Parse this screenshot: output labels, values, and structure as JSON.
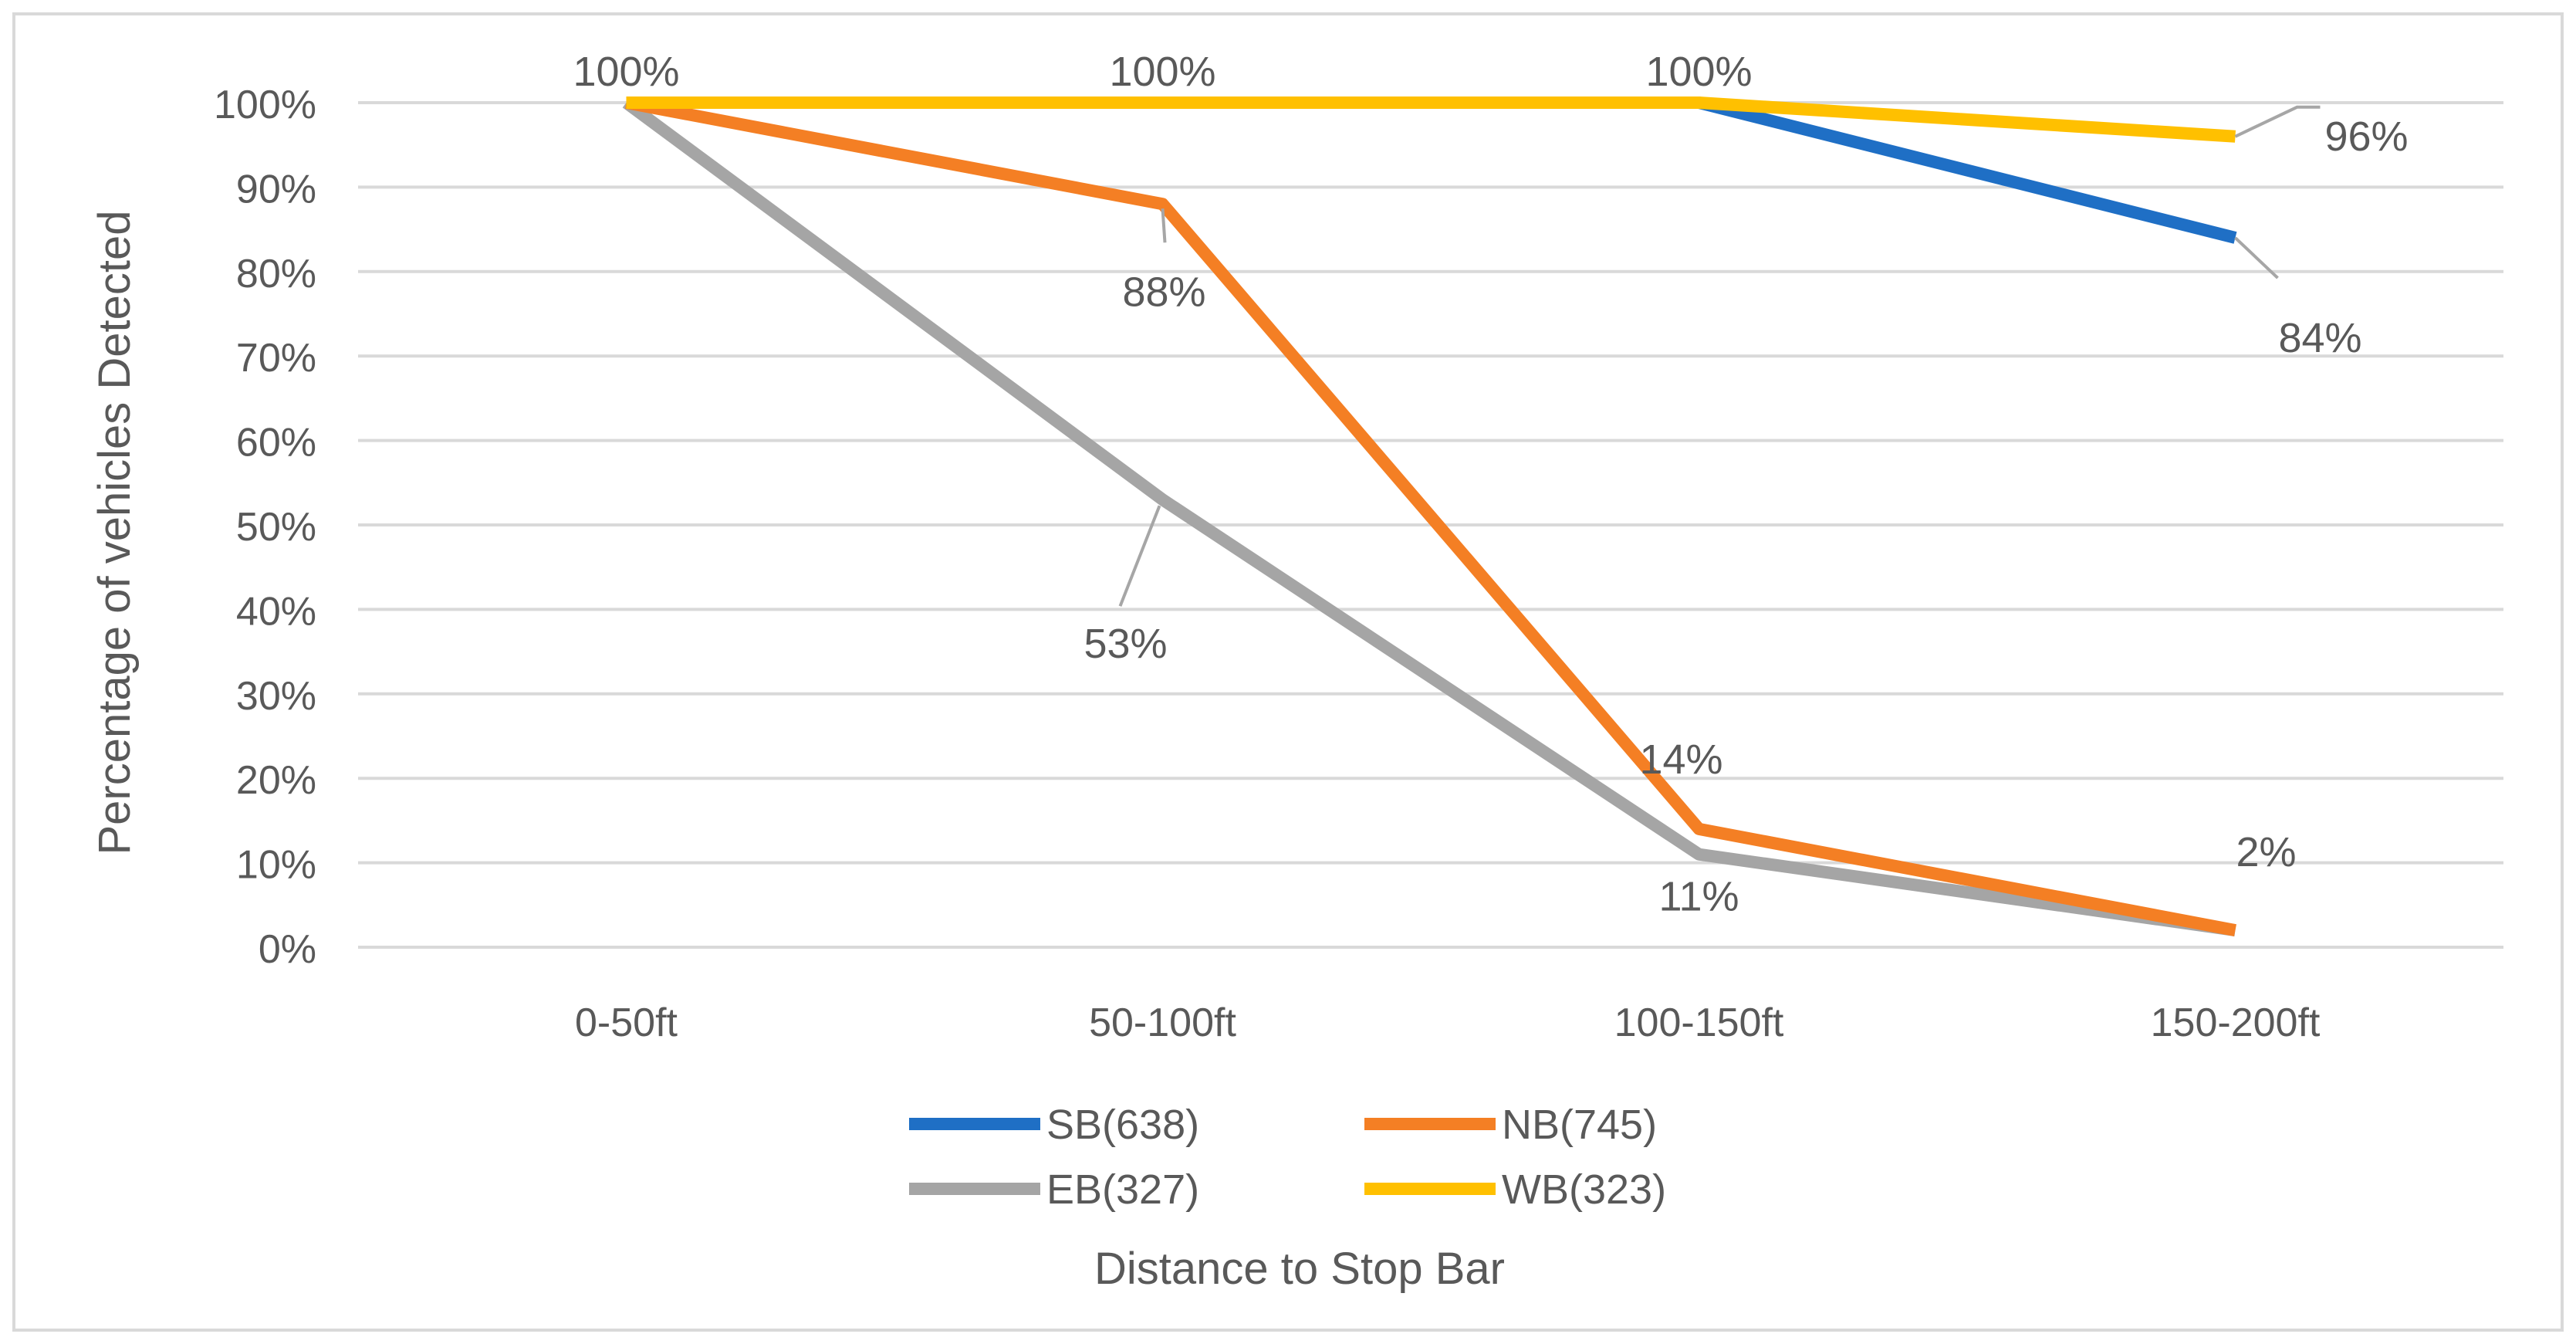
{
  "chart_data": {
    "type": "line",
    "title": "",
    "xlabel": "Distance to Stop Bar",
    "ylabel": "Percentage of vehicles Detected",
    "categories": [
      "0-50ft",
      "50-100ft",
      "100-150ft",
      "150-200ft"
    ],
    "ylim": [
      0,
      100
    ],
    "yticks": [
      0,
      10,
      20,
      30,
      40,
      50,
      60,
      70,
      80,
      90,
      100
    ],
    "ytick_labels": [
      "0%",
      "10%",
      "20%",
      "30%",
      "40%",
      "50%",
      "60%",
      "70%",
      "80%",
      "90%",
      "100%"
    ],
    "grid": true,
    "legend_position": "bottom",
    "series": [
      {
        "name": "SB(638)",
        "color": "#1f6fc5",
        "values": [
          100,
          100,
          100,
          84
        ]
      },
      {
        "name": "NB(745)",
        "color": "#f47f24",
        "values": [
          100,
          88,
          14,
          2
        ]
      },
      {
        "name": "EB(327)",
        "color": "#a5a5a5",
        "values": [
          100,
          53,
          11,
          2
        ]
      },
      {
        "name": "WB(323)",
        "color": "#ffc000",
        "values": [
          100,
          100,
          100,
          96
        ]
      }
    ],
    "data_labels": [
      {
        "text": "100%",
        "category": "0-50ft",
        "value": 100
      },
      {
        "text": "100%",
        "category": "50-100ft",
        "value": 100
      },
      {
        "text": "100%",
        "category": "100-150ft",
        "value": 100
      },
      {
        "text": "96%",
        "category": "150-200ft",
        "value": 96
      },
      {
        "text": "88%",
        "category": "50-100ft",
        "value": 88
      },
      {
        "text": "84%",
        "category": "150-200ft",
        "value": 84
      },
      {
        "text": "53%",
        "category": "50-100ft",
        "value": 53
      },
      {
        "text": "14%",
        "category": "100-150ft",
        "value": 14
      },
      {
        "text": "11%",
        "category": "100-150ft",
        "value": 11
      },
      {
        "text": "2%",
        "category": "150-200ft",
        "value": 2
      }
    ]
  },
  "colors": {
    "grid": "#d9d9d9",
    "text": "#595959",
    "frame": "#d9d9d9",
    "leader": "#a6a6a6"
  }
}
